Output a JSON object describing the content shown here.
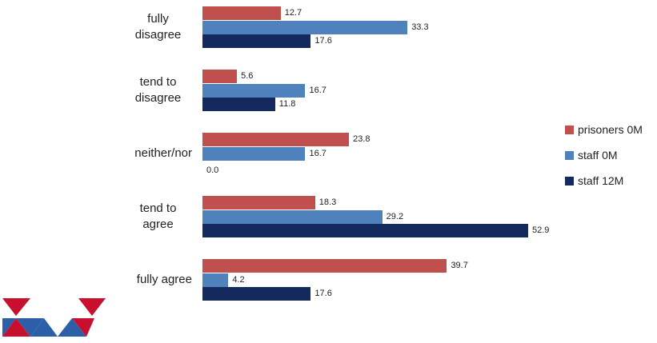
{
  "chart_data": {
    "type": "bar",
    "orientation": "horizontal",
    "categories": [
      "fully disagree",
      "tend to disagree",
      "neither/nor",
      "tend to agree",
      "fully agree"
    ],
    "series": [
      {
        "name": "prisoners 0M",
        "color": "#c0504d",
        "values": [
          12.7,
          5.6,
          23.8,
          18.3,
          39.7
        ],
        "value_labels": [
          "12.7",
          "5.6",
          "23.8",
          "18.3",
          "39.7"
        ]
      },
      {
        "name": "staff 0M",
        "color": "#4f81bd",
        "values": [
          33.3,
          16.7,
          16.7,
          29.2,
          4.2
        ],
        "value_labels": [
          "33.3",
          "16.7",
          "16.7",
          "29.2",
          "4.2"
        ]
      },
      {
        "name": "staff 12M",
        "color": "#14295e",
        "values": [
          17.6,
          11.8,
          0,
          52.9,
          17.6
        ],
        "value_labels": [
          "17.6",
          "11.8",
          "0.0",
          "52.9",
          "17.6"
        ]
      }
    ],
    "legend": "right"
  }
}
